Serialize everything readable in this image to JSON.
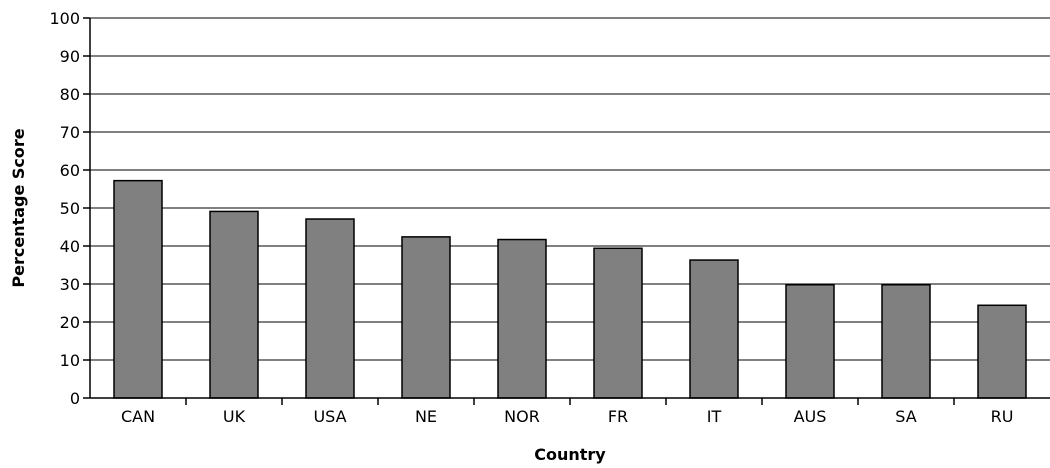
{
  "chart_data": {
    "type": "bar",
    "title": "",
    "xlabel": "Country",
    "ylabel": "Percentage Score",
    "categories": [
      "CAN",
      "UK",
      "USA",
      "NE",
      "NOR",
      "FR",
      "IT",
      "AUS",
      "SA",
      "RU"
    ],
    "values": [
      57.2,
      49.1,
      47.1,
      42.4,
      41.7,
      39.4,
      36.3,
      29.8,
      29.8,
      24.4
    ],
    "ylim": [
      0,
      100
    ],
    "yticks": [
      "0",
      "10",
      "20",
      "30",
      "40",
      "50",
      "60",
      "70",
      "80",
      "90",
      "100"
    ],
    "grid": true,
    "legend": "none",
    "bar_color": "#808080",
    "edge_color": "#000000"
  }
}
